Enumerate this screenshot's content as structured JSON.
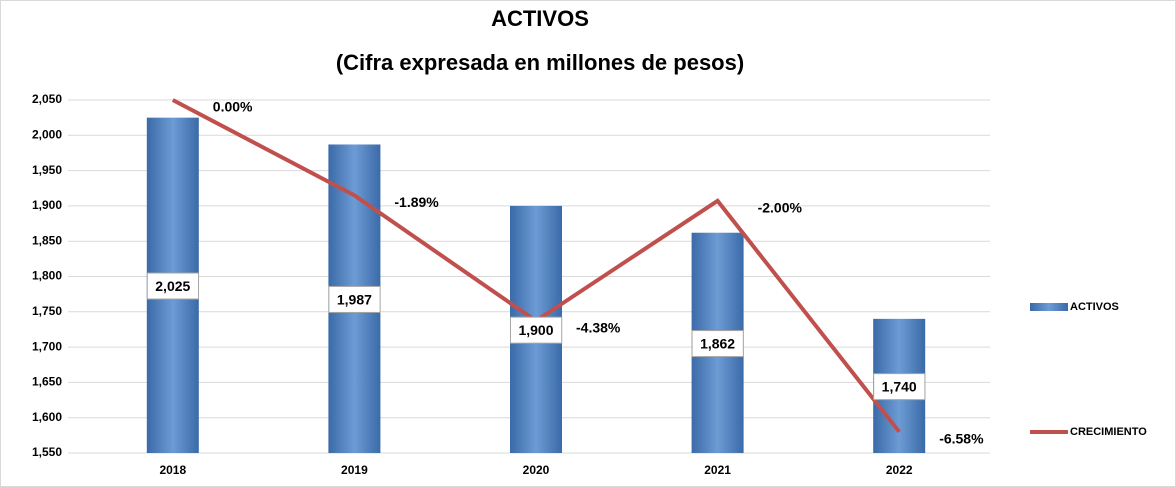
{
  "chart_data": {
    "type": "bar_line",
    "title": "ACTIVOS",
    "subtitle": "(Cifra expresada en millones de pesos)",
    "categories": [
      "2018",
      "2019",
      "2020",
      "2021",
      "2022"
    ],
    "series": [
      {
        "name": "ACTIVOS",
        "type": "bar",
        "color": "#4f81bd",
        "values": [
          2025,
          1987,
          1900,
          1862,
          1740
        ],
        "value_labels": [
          "2,025",
          "1,987",
          "1,900",
          "1,862",
          "1,740"
        ]
      },
      {
        "name": "CRECIMIENTO",
        "type": "line",
        "axis": "y2",
        "color": "#c0504d",
        "values": [
          0.0,
          -1.89,
          -4.38,
          -2.0,
          -6.58
        ],
        "value_labels": [
          "0.00%",
          "-1.89%",
          "-4.38%",
          "-2.00%",
          "-6.58%"
        ]
      }
    ],
    "ylim": [
      1550,
      2050
    ],
    "yticks": [
      {
        "value": 1550,
        "label": "1,550"
      },
      {
        "value": 1600,
        "label": "1,600"
      },
      {
        "value": 1650,
        "label": "1,650"
      },
      {
        "value": 1700,
        "label": "1,700"
      },
      {
        "value": 1750,
        "label": "1,750"
      },
      {
        "value": 1800,
        "label": "1,800"
      },
      {
        "value": 1850,
        "label": "1,850"
      },
      {
        "value": 1900,
        "label": "1,900"
      },
      {
        "value": 1950,
        "label": "1,950"
      },
      {
        "value": 2000,
        "label": "2,000"
      },
      {
        "value": 2050,
        "label": "2,050"
      }
    ],
    "y2lim": [
      -7,
      0
    ],
    "grid": true,
    "legend": "right"
  }
}
